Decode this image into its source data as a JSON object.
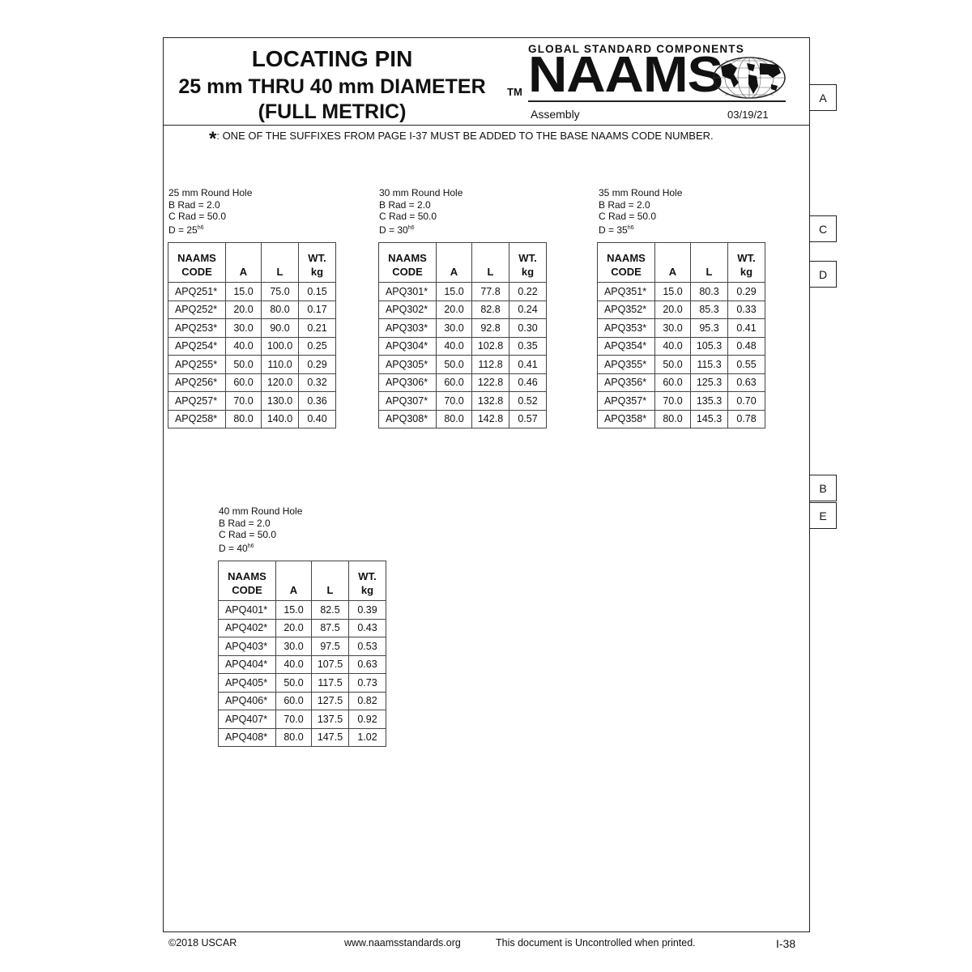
{
  "header": {
    "title_line1": "LOCATING PIN",
    "title_line2": "25 mm THRU 40 mm DIAMETER",
    "title_line3": "(FULL METRIC)",
    "tm": "TM",
    "brand_tagline": "GLOBAL STANDARD COMPONENTS",
    "brand": "NAAMS",
    "section": "Assembly",
    "date": "03/19/21"
  },
  "note": {
    "symbol": "*",
    "text": ":  ONE OF THE SUFFIXES FROM PAGE I-37 MUST BE ADDED TO THE BASE NAAMS CODE NUMBER."
  },
  "side_tabs": [
    "A",
    "C",
    "D",
    "B",
    "E"
  ],
  "columns": [
    "NAAMS CODE",
    "A",
    "L",
    "WT. kg"
  ],
  "tables": [
    {
      "caption": [
        "25 mm Round Hole",
        "B Rad = 2.0",
        "C Rad = 50.0"
      ],
      "d_label": "D = 25",
      "d_sup": "h6",
      "rows": [
        [
          "APQ251*",
          "15.0",
          "75.0",
          "0.15"
        ],
        [
          "APQ252*",
          "20.0",
          "80.0",
          "0.17"
        ],
        [
          "APQ253*",
          "30.0",
          "90.0",
          "0.21"
        ],
        [
          "APQ254*",
          "40.0",
          "100.0",
          "0.25"
        ],
        [
          "APQ255*",
          "50.0",
          "110.0",
          "0.29"
        ],
        [
          "APQ256*",
          "60.0",
          "120.0",
          "0.32"
        ],
        [
          "APQ257*",
          "70.0",
          "130.0",
          "0.36"
        ],
        [
          "APQ258*",
          "80.0",
          "140.0",
          "0.40"
        ]
      ]
    },
    {
      "caption": [
        "30 mm Round Hole",
        "B Rad = 2.0",
        "C Rad = 50.0"
      ],
      "d_label": "D = 30",
      "d_sup": "h6",
      "rows": [
        [
          "APQ301*",
          "15.0",
          "77.8",
          "0.22"
        ],
        [
          "APQ302*",
          "20.0",
          "82.8",
          "0.24"
        ],
        [
          "APQ303*",
          "30.0",
          "92.8",
          "0.30"
        ],
        [
          "APQ304*",
          "40.0",
          "102.8",
          "0.35"
        ],
        [
          "APQ305*",
          "50.0",
          "112.8",
          "0.41"
        ],
        [
          "APQ306*",
          "60.0",
          "122.8",
          "0.46"
        ],
        [
          "APQ307*",
          "70.0",
          "132.8",
          "0.52"
        ],
        [
          "APQ308*",
          "80.0",
          "142.8",
          "0.57"
        ]
      ]
    },
    {
      "caption": [
        "35 mm Round Hole",
        "B Rad = 2.0",
        "C Rad = 50.0"
      ],
      "d_label": "D = 35",
      "d_sup": "h6",
      "rows": [
        [
          "APQ351*",
          "15.0",
          "80.3",
          "0.29"
        ],
        [
          "APQ352*",
          "20.0",
          "85.3",
          "0.33"
        ],
        [
          "APQ353*",
          "30.0",
          "95.3",
          "0.41"
        ],
        [
          "APQ354*",
          "40.0",
          "105.3",
          "0.48"
        ],
        [
          "APQ355*",
          "50.0",
          "115.3",
          "0.55"
        ],
        [
          "APQ356*",
          "60.0",
          "125.3",
          "0.63"
        ],
        [
          "APQ357*",
          "70.0",
          "135.3",
          "0.70"
        ],
        [
          "APQ358*",
          "80.0",
          "145.3",
          "0.78"
        ]
      ]
    },
    {
      "caption": [
        "40 mm Round Hole",
        "B Rad = 2.0",
        "C Rad = 50.0"
      ],
      "d_label": "D = 40",
      "d_sup": "h6",
      "rows": [
        [
          "APQ401*",
          "15.0",
          "82.5",
          "0.39"
        ],
        [
          "APQ402*",
          "20.0",
          "87.5",
          "0.43"
        ],
        [
          "APQ403*",
          "30.0",
          "97.5",
          "0.53"
        ],
        [
          "APQ404*",
          "40.0",
          "107.5",
          "0.63"
        ],
        [
          "APQ405*",
          "50.0",
          "117.5",
          "0.73"
        ],
        [
          "APQ406*",
          "60.0",
          "127.5",
          "0.82"
        ],
        [
          "APQ407*",
          "70.0",
          "137.5",
          "0.92"
        ],
        [
          "APQ408*",
          "80.0",
          "147.5",
          "1.02"
        ]
      ]
    }
  ],
  "footer": {
    "copyright": "©2018 USCAR",
    "website": "www.naamsstandards.org",
    "disclaimer": "This document is Uncontrolled when printed.",
    "page": "I-38"
  }
}
